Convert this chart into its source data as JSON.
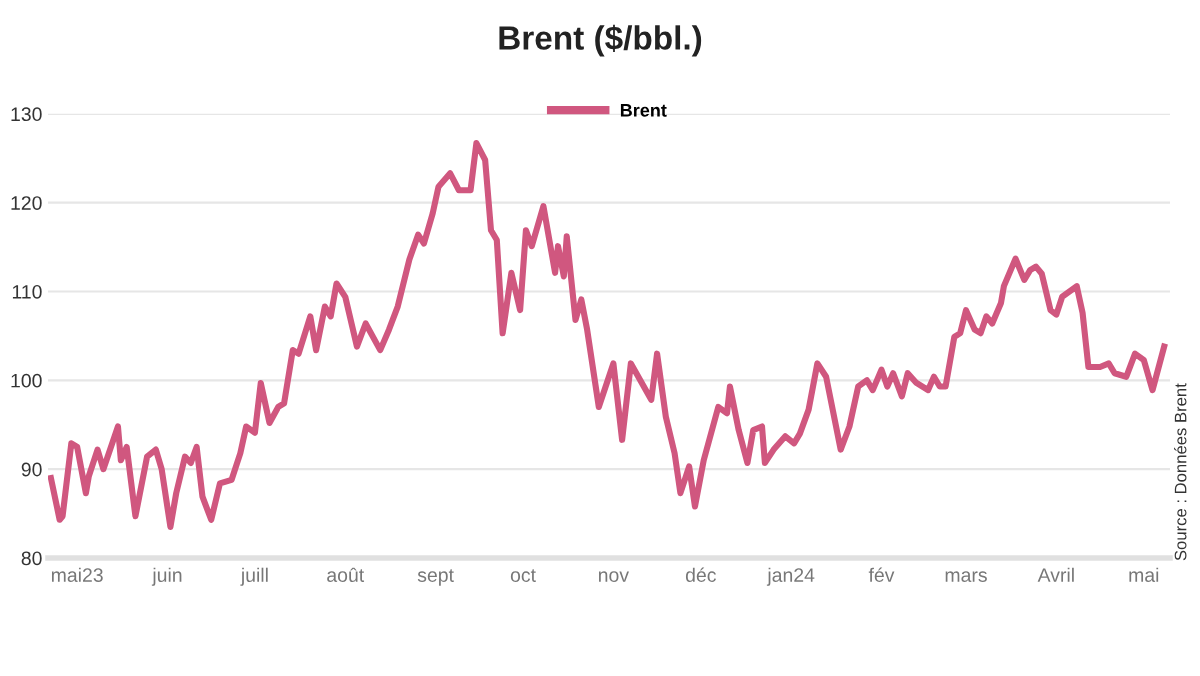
{
  "chart_data": {
    "type": "line",
    "title": "Brent ($/bbl.)",
    "annotations": [
      "Source : Données Brent"
    ],
    "x": [
      "2023-04-22",
      "2023-04-25",
      "2023-04-26",
      "2023-04-29",
      "2023-05-01",
      "2023-05-04",
      "2023-05-05",
      "2023-05-08",
      "2023-05-10",
      "2023-05-15",
      "2023-05-16",
      "2023-05-18",
      "2023-05-21",
      "2023-05-25",
      "2023-05-28",
      "2023-05-30",
      "2023-06-02",
      "2023-06-04",
      "2023-06-07",
      "2023-06-09",
      "2023-06-11",
      "2023-06-13",
      "2023-06-16",
      "2023-06-19",
      "2023-06-23",
      "2023-06-26",
      "2023-06-28",
      "2023-07-01",
      "2023-07-03",
      "2023-07-06",
      "2023-07-09",
      "2023-07-11",
      "2023-07-14",
      "2023-07-16",
      "2023-07-20",
      "2023-07-22",
      "2023-07-25",
      "2023-07-27",
      "2023-07-29",
      "2023-08-01",
      "2023-08-05",
      "2023-08-08",
      "2023-08-13",
      "2023-08-16",
      "2023-08-19",
      "2023-08-23",
      "2023-08-26",
      "2023-08-28",
      "2023-08-31",
      "2023-09-02",
      "2023-09-06",
      "2023-09-09",
      "2023-09-13",
      "2023-09-15",
      "2023-09-18",
      "2023-09-20",
      "2023-09-22",
      "2023-09-24",
      "2023-09-27",
      "2023-09-30",
      "2023-10-02",
      "2023-10-04",
      "2023-10-08",
      "2023-10-12",
      "2023-10-13",
      "2023-10-15",
      "2023-10-16",
      "2023-10-19",
      "2023-10-21",
      "2023-10-23",
      "2023-10-27",
      "2023-11-01",
      "2023-11-04",
      "2023-11-07",
      "2023-11-14",
      "2023-11-16",
      "2023-11-19",
      "2023-11-22",
      "2023-11-24",
      "2023-11-27",
      "2023-11-29",
      "2023-12-02",
      "2023-12-07",
      "2023-12-10",
      "2023-12-11",
      "2023-12-14",
      "2023-12-17",
      "2023-12-19",
      "2023-12-22",
      "2023-12-23",
      "2023-12-26",
      "2023-12-30",
      "2024-01-02",
      "2024-01-04",
      "2024-01-07",
      "2024-01-10",
      "2024-01-13",
      "2024-01-18",
      "2024-01-21",
      "2024-01-24",
      "2024-01-27",
      "2024-01-29",
      "2024-02-01",
      "2024-02-03",
      "2024-02-05",
      "2024-02-08",
      "2024-02-10",
      "2024-02-13",
      "2024-02-17",
      "2024-02-19",
      "2024-02-21",
      "2024-02-23",
      "2024-02-26",
      "2024-02-28",
      "2024-03-01",
      "2024-03-04",
      "2024-03-06",
      "2024-03-08",
      "2024-03-10",
      "2024-03-13",
      "2024-03-14",
      "2024-03-18",
      "2024-03-21",
      "2024-03-23",
      "2024-03-25",
      "2024-03-27",
      "2024-03-30",
      "2024-04-01",
      "2024-04-03",
      "2024-04-08",
      "2024-04-10",
      "2024-04-12",
      "2024-04-16",
      "2024-04-19",
      "2024-04-21",
      "2024-04-25",
      "2024-04-28",
      "2024-05-01",
      "2024-05-04",
      "2024-05-08"
    ],
    "series": [
      {
        "name": "Brent",
        "color": "#d0577f",
        "values": [
          89.0,
          84.3,
          84.7,
          92.9,
          92.5,
          87.3,
          89.2,
          92.2,
          90.0,
          94.8,
          91.0,
          92.5,
          84.7,
          91.4,
          92.2,
          90.0,
          83.5,
          87.3,
          91.4,
          90.7,
          92.5,
          86.9,
          84.3,
          88.4,
          88.8,
          91.8,
          94.8,
          94.1,
          99.7,
          95.2,
          97.0,
          97.4,
          103.4,
          103.0,
          107.2,
          103.4,
          108.3,
          107.2,
          110.9,
          109.4,
          103.8,
          106.4,
          103.4,
          105.7,
          108.3,
          113.6,
          116.4,
          115.4,
          118.8,
          121.8,
          123.3,
          121.4,
          121.4,
          126.7,
          124.8,
          116.9,
          115.8,
          105.3,
          112.1,
          107.9,
          116.9,
          115.1,
          119.6,
          112.1,
          115.1,
          111.7,
          116.2,
          106.8,
          109.1,
          105.7,
          97.0,
          101.9,
          93.3,
          101.9,
          97.8,
          103.0,
          95.9,
          91.8,
          87.3,
          90.3,
          85.8,
          91.0,
          97.0,
          96.3,
          99.3,
          94.4,
          90.7,
          94.4,
          94.8,
          90.7,
          92.2,
          93.7,
          92.9,
          94.0,
          96.7,
          101.9,
          100.4,
          92.2,
          94.8,
          99.3,
          100.0,
          98.9,
          101.2,
          99.3,
          100.8,
          98.2,
          100.8,
          99.7,
          98.9,
          100.4,
          99.3,
          99.3,
          104.9,
          105.3,
          107.9,
          105.7,
          105.3,
          107.2,
          106.4,
          108.7,
          110.6,
          113.7,
          111.3,
          112.4,
          112.8,
          112.0,
          107.9,
          107.4,
          109.4,
          110.6,
          107.6,
          101.5,
          101.5,
          101.9,
          100.8,
          100.4,
          103.0,
          102.3,
          98.9,
          103.8
        ]
      }
    ],
    "xlim": [
      "2023-04-21",
      "2024-05-10"
    ],
    "xticks": [
      {
        "value": "2023-05-01",
        "label": "mai23"
      },
      {
        "value": "2023-06-01",
        "label": "juin"
      },
      {
        "value": "2023-07-01",
        "label": "juill"
      },
      {
        "value": "2023-08-01",
        "label": "août"
      },
      {
        "value": "2023-09-01",
        "label": "sept"
      },
      {
        "value": "2023-10-01",
        "label": "oct"
      },
      {
        "value": "2023-11-01",
        "label": "nov"
      },
      {
        "value": "2023-12-01",
        "label": "déc"
      },
      {
        "value": "2024-01-01",
        "label": "jan24"
      },
      {
        "value": "2024-02-01",
        "label": "fév"
      },
      {
        "value": "2024-03-01",
        "label": "mars"
      },
      {
        "value": "2024-04-01",
        "label": "Avril"
      },
      {
        "value": "2024-05-01",
        "label": "mai"
      }
    ],
    "ylim": [
      80,
      130
    ],
    "yticks": [
      80,
      90,
      100,
      110,
      120,
      130
    ],
    "grid": "y",
    "legend": "top",
    "marker": "none",
    "line_style": "solid"
  }
}
